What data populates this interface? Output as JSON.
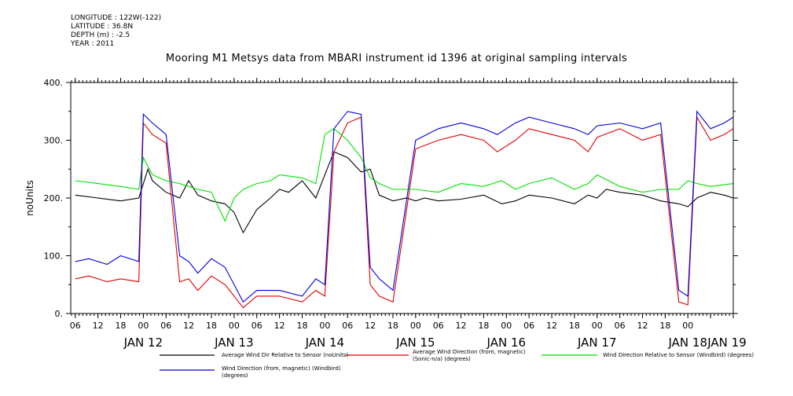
{
  "meta": {
    "longitude": "LONGITUDE : 122W(-122)",
    "latitude": "LATITUDE : 36.8N",
    "depth": "DEPTH (m) : -2.5",
    "year": "YEAR : 2011"
  },
  "chart_data": {
    "type": "line",
    "title": "Mooring M1 Metsys data from MBARI instrument id 1396 at original sampling intervals",
    "xlabel": "",
    "ylabel": "noUnits",
    "ylim": [
      0,
      400
    ],
    "yticks": [
      0,
      100,
      200,
      300,
      400
    ],
    "yticklabels": [
      "0.",
      "100.",
      "200.",
      "300.",
      "400."
    ],
    "xlim_days": [
      11.2,
      18.5
    ],
    "hour_ticks": [
      "06",
      "12",
      "18",
      "00",
      "06",
      "12",
      "18",
      "00",
      "06",
      "12",
      "18",
      "00",
      "06",
      "12",
      "18",
      "00",
      "06",
      "12",
      "18",
      "00",
      "06",
      "12",
      "18",
      "00",
      "06",
      "12",
      "18",
      "00"
    ],
    "day_labels": [
      {
        "day": 12,
        "label": "JAN 12"
      },
      {
        "day": 13,
        "label": "JAN 13"
      },
      {
        "day": 14,
        "label": "JAN 14"
      },
      {
        "day": 15,
        "label": "JAN 15"
      },
      {
        "day": 16,
        "label": "JAN 16"
      },
      {
        "day": 17,
        "label": "JAN 17"
      },
      {
        "day": 18,
        "label": "JAN 18"
      },
      {
        "day": 19,
        "label": "JAN 19"
      }
    ],
    "grid": false,
    "legend_position": "bottom",
    "series": [
      {
        "name": "Average Wind Dir Relative to Sensor (noUnits)",
        "color": "#000000",
        "time_days": [
          11.25,
          11.5,
          11.75,
          11.95,
          12.05,
          12.1,
          12.25,
          12.4,
          12.5,
          12.6,
          12.75,
          12.9,
          13.0,
          13.1,
          13.25,
          13.4,
          13.5,
          13.6,
          13.75,
          13.9,
          14.0,
          14.1,
          14.25,
          14.4,
          14.5,
          14.6,
          14.75,
          14.9,
          15.0,
          15.1,
          15.25,
          15.5,
          15.75,
          15.95,
          16.1,
          16.25,
          16.5,
          16.75,
          16.9,
          17.0,
          17.1,
          17.25,
          17.5,
          17.7,
          17.9,
          18.0,
          18.1,
          18.25,
          18.4,
          18.5
        ],
        "values": [
          205,
          200,
          195,
          200,
          250,
          230,
          210,
          200,
          230,
          205,
          195,
          190,
          175,
          140,
          180,
          200,
          215,
          210,
          230,
          200,
          240,
          280,
          270,
          245,
          250,
          205,
          195,
          200,
          195,
          200,
          195,
          198,
          205,
          190,
          195,
          205,
          200,
          190,
          205,
          200,
          215,
          210,
          205,
          195,
          190,
          185,
          200,
          210,
          205,
          200
        ]
      },
      {
        "name": "Average Wind Direction (from, magnetic) (Sonic-n/a) (degrees)",
        "color": "#e00000",
        "time_days": [
          11.25,
          11.4,
          11.6,
          11.75,
          11.95,
          12.0,
          12.1,
          12.25,
          12.4,
          12.5,
          12.6,
          12.75,
          12.9,
          13.0,
          13.1,
          13.25,
          13.5,
          13.75,
          13.9,
          14.0,
          14.1,
          14.25,
          14.4,
          14.5,
          14.6,
          14.75,
          15.0,
          15.25,
          15.5,
          15.75,
          15.9,
          16.0,
          16.1,
          16.25,
          16.5,
          16.75,
          16.9,
          17.0,
          17.25,
          17.5,
          17.7,
          17.9,
          18.0,
          18.1,
          18.25,
          18.4,
          18.5
        ],
        "values": [
          60,
          65,
          55,
          60,
          55,
          330,
          310,
          295,
          55,
          60,
          40,
          65,
          50,
          30,
          10,
          30,
          30,
          20,
          40,
          30,
          280,
          330,
          340,
          50,
          30,
          20,
          285,
          300,
          310,
          300,
          280,
          290,
          300,
          320,
          310,
          300,
          280,
          305,
          320,
          300,
          310,
          20,
          15,
          340,
          300,
          310,
          320
        ]
      },
      {
        "name": "Wind Direction Relative to Sensor (Windbird) (degrees)",
        "color": "#00e000",
        "time_days": [
          11.25,
          11.5,
          11.75,
          11.95,
          12.0,
          12.1,
          12.25,
          12.4,
          12.5,
          12.6,
          12.75,
          12.9,
          13.0,
          13.1,
          13.25,
          13.4,
          13.5,
          13.75,
          13.9,
          14.0,
          14.1,
          14.25,
          14.4,
          14.5,
          14.6,
          14.75,
          15.0,
          15.25,
          15.5,
          15.75,
          15.95,
          16.0,
          16.1,
          16.25,
          16.5,
          16.75,
          16.9,
          17.0,
          17.25,
          17.5,
          17.7,
          17.9,
          18.0,
          18.1,
          18.25,
          18.5
        ],
        "values": [
          230,
          225,
          220,
          215,
          270,
          240,
          230,
          225,
          220,
          215,
          210,
          160,
          200,
          215,
          225,
          230,
          240,
          235,
          225,
          310,
          320,
          300,
          270,
          235,
          225,
          215,
          215,
          210,
          225,
          220,
          230,
          225,
          215,
          225,
          235,
          215,
          225,
          240,
          220,
          210,
          215,
          215,
          230,
          225,
          220,
          225
        ]
      },
      {
        "name": "Wind Direction (from, magnetic) (Windbird) (degrees)",
        "color": "#0000e0",
        "time_days": [
          11.25,
          11.4,
          11.6,
          11.75,
          11.95,
          12.0,
          12.1,
          12.25,
          12.4,
          12.5,
          12.6,
          12.75,
          12.9,
          13.0,
          13.1,
          13.25,
          13.5,
          13.75,
          13.9,
          14.0,
          14.1,
          14.25,
          14.4,
          14.5,
          14.6,
          14.75,
          15.0,
          15.25,
          15.5,
          15.75,
          15.9,
          16.0,
          16.1,
          16.25,
          16.5,
          16.75,
          16.9,
          17.0,
          17.25,
          17.5,
          17.7,
          17.9,
          18.0,
          18.1,
          18.25,
          18.4,
          18.5
        ],
        "values": [
          90,
          95,
          85,
          100,
          90,
          345,
          330,
          310,
          100,
          90,
          70,
          95,
          80,
          50,
          20,
          40,
          40,
          30,
          60,
          50,
          320,
          350,
          345,
          80,
          60,
          40,
          300,
          320,
          330,
          320,
          310,
          320,
          330,
          340,
          330,
          320,
          310,
          325,
          330,
          320,
          330,
          40,
          30,
          350,
          320,
          330,
          340
        ]
      }
    ]
  }
}
